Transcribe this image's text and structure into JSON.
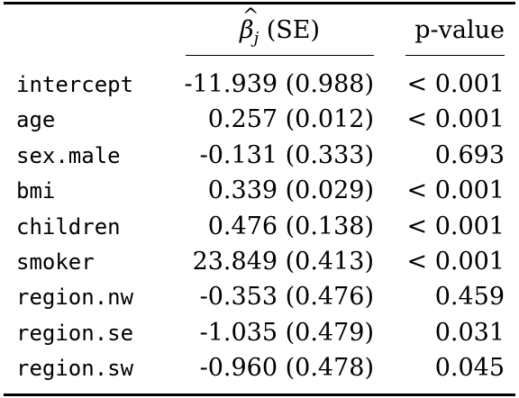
{
  "table": {
    "header": {
      "beta_symbol": "β",
      "beta_hat": "^",
      "beta_sub": "j",
      "beta_se": " (SE)",
      "pvalue": "p-value"
    },
    "rows": [
      {
        "name": "intercept",
        "beta_se": "-11.939 (0.988)",
        "pvalue": "< 0.001"
      },
      {
        "name": "age",
        "beta_se": "0.257 (0.012)",
        "pvalue": "< 0.001"
      },
      {
        "name": "sex.male",
        "beta_se": "-0.131 (0.333)",
        "pvalue": "0.693"
      },
      {
        "name": "bmi",
        "beta_se": "0.339 (0.029)",
        "pvalue": "< 0.001"
      },
      {
        "name": "children",
        "beta_se": "0.476 (0.138)",
        "pvalue": "< 0.001"
      },
      {
        "name": "smoker",
        "beta_se": "23.849 (0.413)",
        "pvalue": "< 0.001"
      },
      {
        "name": "region.nw",
        "beta_se": "-0.353 (0.476)",
        "pvalue": "0.459"
      },
      {
        "name": "region.se",
        "beta_se": "-1.035 (0.479)",
        "pvalue": "0.031"
      },
      {
        "name": "region.sw",
        "beta_se": "-0.960 (0.478)",
        "pvalue": "0.045"
      }
    ]
  }
}
